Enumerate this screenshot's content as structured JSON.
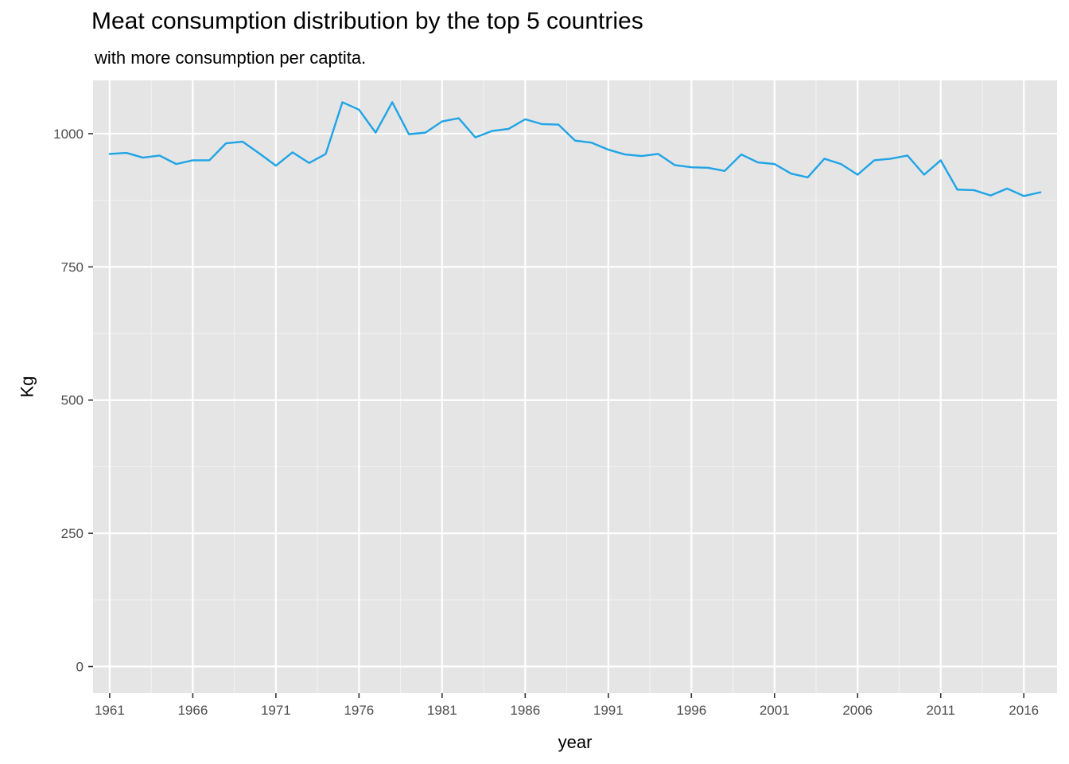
{
  "chart_data": {
    "type": "line",
    "title": "Meat consumption distribution by the top 5 countries",
    "subtitle": " with more consumption per captita.",
    "xlabel": "year",
    "ylabel": "Kg",
    "xlim": [
      1960,
      2018
    ],
    "ylim": [
      -50,
      1100
    ],
    "x_ticks": [
      1961,
      1966,
      1971,
      1976,
      1981,
      1986,
      1991,
      1996,
      2001,
      2006,
      2011,
      2016
    ],
    "y_ticks": [
      0,
      250,
      500,
      750,
      1000
    ],
    "grid": true,
    "line_color": "#1fa4e6",
    "series": [
      {
        "x": [
          1961,
          1962,
          1963,
          1964,
          1965,
          1966,
          1967,
          1968,
          1969,
          1970,
          1971,
          1972,
          1973,
          1974,
          1975,
          1976,
          1977,
          1978,
          1979,
          1980,
          1981,
          1982,
          1983,
          1984,
          1985,
          1986,
          1987,
          1988,
          1989,
          1990,
          1991,
          1992,
          1993,
          1994,
          1995,
          1996,
          1997,
          1998,
          1999,
          2000,
          2001,
          2002,
          2003,
          2004,
          2005,
          2006,
          2007,
          2008,
          2009,
          2010,
          2011,
          2012,
          2013,
          2014,
          2015,
          2016,
          2017
        ],
        "values": [
          962,
          964,
          955,
          959,
          943,
          950,
          950,
          982,
          985,
          963,
          940,
          965,
          945,
          962,
          1059,
          1045,
          1002,
          1059,
          999,
          1002,
          1023,
          1029,
          993,
          1005,
          1009,
          1027,
          1018,
          1017,
          987,
          983,
          970,
          961,
          958,
          962,
          941,
          937,
          936,
          930,
          961,
          946,
          943,
          925,
          918,
          953,
          943,
          923,
          950,
          953,
          959,
          923,
          950,
          895,
          894,
          884,
          897,
          883,
          890
        ]
      }
    ]
  }
}
